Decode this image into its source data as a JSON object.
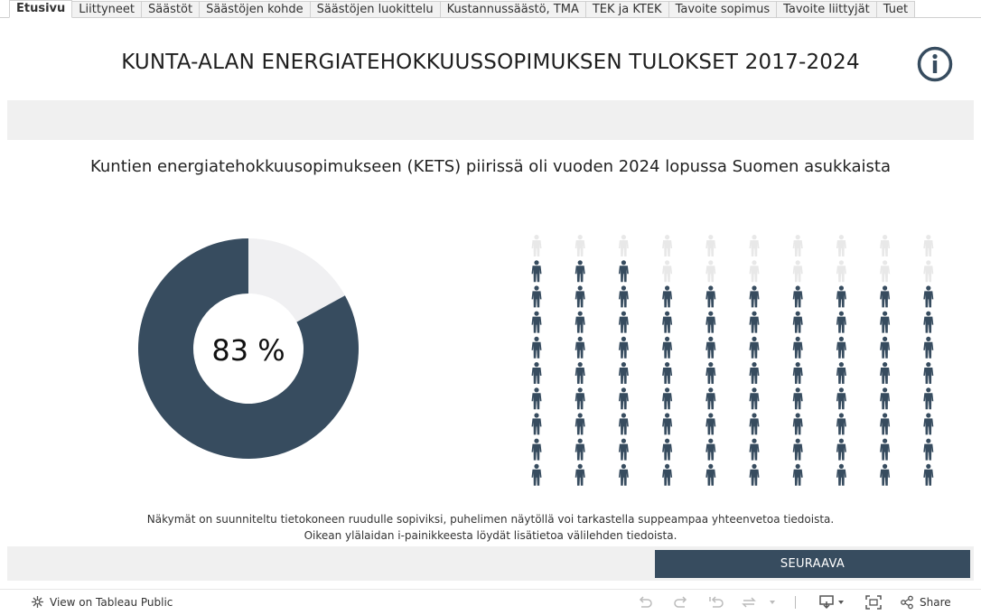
{
  "tabs": [
    {
      "label": "Etusivu",
      "active": true
    },
    {
      "label": "Liittyneet"
    },
    {
      "label": "Säästöt"
    },
    {
      "label": "Säästöjen kohde"
    },
    {
      "label": "Säästöjen luokittelu"
    },
    {
      "label": "Kustannussäästö, TMA"
    },
    {
      "label": "TEK ja KTEK"
    },
    {
      "label": "Tavoite sopimus"
    },
    {
      "label": "Tavoite liittyjät"
    },
    {
      "label": "Tuet"
    }
  ],
  "header": {
    "title": "KUNTA-ALAN ENERGIATEHOKKUUSSOPIMUKSEN TULOKSET 2017-2024",
    "info_icon": "info-circle-icon"
  },
  "main": {
    "subtitle": "Kuntien energiatehokkuusopimukseen (KETS) piirissä oli vuoden 2024 lopussa Suomen asukkaista",
    "percent_label": "83 %",
    "share": 0.83,
    "pictogram": {
      "columns": 10,
      "rows": 10,
      "filled_per_column": [
        9,
        9,
        9,
        8,
        8,
        8,
        8,
        8,
        8,
        8
      ],
      "filled_color": "#374c5f",
      "empty_color": "#e8e8e8",
      "icon": "person-icon"
    },
    "donut_colors": {
      "filled": "#374c5f",
      "empty": "#f0f0f2"
    }
  },
  "notes": {
    "line1": "Näkymät on suunniteltu tietokoneen ruudulle sopiviksi, puhelimen näytöllä voi tarkastella suppeampaa yhteenvetoa tiedoista.",
    "line2": "Oikean ylälaidan i-painikkeesta löydät lisätietoa välilehden tiedoista."
  },
  "next_button": {
    "label": "SEURAAVA"
  },
  "footer": {
    "view_link": "View on Tableau Public",
    "share": "Share"
  }
}
